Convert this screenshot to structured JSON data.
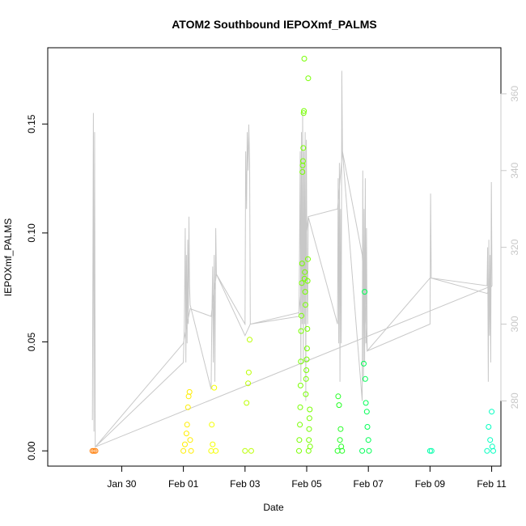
{
  "chart_data": {
    "type": "scatter",
    "title": "ATOM2 Southbound IEPOXmf_PALMS",
    "xlabel": "Date",
    "ylabel": "IEPOXmf_PALMS",
    "x_unit": "days (0 = Jan 30)",
    "xlim": [
      -2.4,
      12.3
    ],
    "ylim": [
      -0.007,
      0.185
    ],
    "y2lim": [
      263,
      372
    ],
    "x_ticks": [
      {
        "label": "Jan 30",
        "x": 0
      },
      {
        "label": "Feb 01",
        "x": 2
      },
      {
        "label": "Feb 03",
        "x": 4
      },
      {
        "label": "Feb 05",
        "x": 6
      },
      {
        "label": "Feb 07",
        "x": 8
      },
      {
        "label": "Feb 09",
        "x": 10
      },
      {
        "label": "Feb 11",
        "x": 12
      }
    ],
    "y_ticks": [
      {
        "label": "0.00",
        "y": 0.0
      },
      {
        "label": "0.05",
        "y": 0.05
      },
      {
        "label": "0.10",
        "y": 0.1
      },
      {
        "label": "0.15",
        "y": 0.15
      }
    ],
    "y2_ticks": [
      {
        "label": "280",
        "y": 280
      },
      {
        "label": "300",
        "y": 300
      },
      {
        "label": "320",
        "y": 320
      },
      {
        "label": "340",
        "y": 340
      },
      {
        "label": "360",
        "y": 360
      }
    ],
    "series": [
      {
        "name": "IEPOXmf_PALMS",
        "marker": "open-circle",
        "color_scale": [
          "#ff7a00",
          "#ffdd00",
          "#e6ff00",
          "#9dff00",
          "#66ff00",
          "#00ff44",
          "#00ffaa"
        ],
        "points": [
          {
            "x": -0.95,
            "y": 0.0,
            "c": "#ff7a00"
          },
          {
            "x": -0.9,
            "y": 0.0,
            "c": "#ff7a00"
          },
          {
            "x": -0.85,
            "y": 0.0,
            "c": "#ff7a00"
          },
          {
            "x": 2.0,
            "y": 0.0,
            "c": "#ffee00"
          },
          {
            "x": 2.05,
            "y": 0.003,
            "c": "#ffee00"
          },
          {
            "x": 2.1,
            "y": 0.008,
            "c": "#ffee00"
          },
          {
            "x": 2.12,
            "y": 0.012,
            "c": "#ffee00"
          },
          {
            "x": 2.15,
            "y": 0.02,
            "c": "#ffee00"
          },
          {
            "x": 2.17,
            "y": 0.025,
            "c": "#ffee00"
          },
          {
            "x": 2.2,
            "y": 0.027,
            "c": "#ffee00"
          },
          {
            "x": 2.22,
            "y": 0.005,
            "c": "#ffee00"
          },
          {
            "x": 2.25,
            "y": 0.0,
            "c": "#ffee00"
          },
          {
            "x": 2.9,
            "y": 0.0,
            "c": "#f5ff00"
          },
          {
            "x": 2.92,
            "y": 0.012,
            "c": "#f5ff00"
          },
          {
            "x": 2.95,
            "y": 0.003,
            "c": "#f5ff00"
          },
          {
            "x": 3.0,
            "y": 0.029,
            "c": "#f5ff00"
          },
          {
            "x": 3.05,
            "y": 0.0,
            "c": "#f5ff00"
          },
          {
            "x": 4.0,
            "y": 0.0,
            "c": "#bbff00"
          },
          {
            "x": 4.05,
            "y": 0.022,
            "c": "#bbff00"
          },
          {
            "x": 4.1,
            "y": 0.031,
            "c": "#bbff00"
          },
          {
            "x": 4.12,
            "y": 0.036,
            "c": "#bbff00"
          },
          {
            "x": 4.15,
            "y": 0.051,
            "c": "#bbff00"
          },
          {
            "x": 4.2,
            "y": 0.0,
            "c": "#bbff00"
          },
          {
            "x": 5.75,
            "y": 0.0,
            "c": "#77ff00"
          },
          {
            "x": 5.76,
            "y": 0.005,
            "c": "#77ff00"
          },
          {
            "x": 5.78,
            "y": 0.012,
            "c": "#77ff00"
          },
          {
            "x": 5.79,
            "y": 0.02,
            "c": "#77ff00"
          },
          {
            "x": 5.8,
            "y": 0.03,
            "c": "#77ff00"
          },
          {
            "x": 5.81,
            "y": 0.041,
            "c": "#77ff00"
          },
          {
            "x": 5.82,
            "y": 0.055,
            "c": "#77ff00"
          },
          {
            "x": 5.83,
            "y": 0.062,
            "c": "#77ff00"
          },
          {
            "x": 5.84,
            "y": 0.077,
            "c": "#77ff00"
          },
          {
            "x": 5.85,
            "y": 0.086,
            "c": "#77ff00"
          },
          {
            "x": 5.86,
            "y": 0.128,
            "c": "#77ff00"
          },
          {
            "x": 5.87,
            "y": 0.131,
            "c": "#77ff00"
          },
          {
            "x": 5.88,
            "y": 0.133,
            "c": "#77ff00"
          },
          {
            "x": 5.89,
            "y": 0.139,
            "c": "#77ff00"
          },
          {
            "x": 5.9,
            "y": 0.155,
            "c": "#77ff00"
          },
          {
            "x": 5.91,
            "y": 0.156,
            "c": "#77ff00"
          },
          {
            "x": 5.92,
            "y": 0.18,
            "c": "#77ff00"
          },
          {
            "x": 5.93,
            "y": 0.079,
            "c": "#77ff00"
          },
          {
            "x": 5.94,
            "y": 0.082,
            "c": "#77ff00"
          },
          {
            "x": 5.95,
            "y": 0.073,
            "c": "#77ff00"
          },
          {
            "x": 5.96,
            "y": 0.067,
            "c": "#77ff00"
          },
          {
            "x": 5.97,
            "y": 0.026,
            "c": "#77ff00"
          },
          {
            "x": 5.98,
            "y": 0.033,
            "c": "#77ff00"
          },
          {
            "x": 5.99,
            "y": 0.037,
            "c": "#77ff00"
          },
          {
            "x": 6.0,
            "y": 0.042,
            "c": "#77ff00"
          },
          {
            "x": 6.01,
            "y": 0.047,
            "c": "#77ff00"
          },
          {
            "x": 6.02,
            "y": 0.056,
            "c": "#77ff00"
          },
          {
            "x": 6.03,
            "y": 0.078,
            "c": "#77ff00"
          },
          {
            "x": 6.04,
            "y": 0.088,
            "c": "#77ff00"
          },
          {
            "x": 6.05,
            "y": 0.171,
            "c": "#77ff00"
          },
          {
            "x": 6.06,
            "y": 0.0,
            "c": "#77ff00"
          },
          {
            "x": 6.07,
            "y": 0.005,
            "c": "#77ff00"
          },
          {
            "x": 6.08,
            "y": 0.01,
            "c": "#77ff00"
          },
          {
            "x": 6.09,
            "y": 0.015,
            "c": "#77ff00"
          },
          {
            "x": 6.1,
            "y": 0.019,
            "c": "#77ff00"
          },
          {
            "x": 6.11,
            "y": 0.002,
            "c": "#77ff00"
          },
          {
            "x": 7.0,
            "y": 0.0,
            "c": "#22ff22"
          },
          {
            "x": 7.02,
            "y": 0.025,
            "c": "#22ff22"
          },
          {
            "x": 7.05,
            "y": 0.021,
            "c": "#22ff22"
          },
          {
            "x": 7.08,
            "y": 0.005,
            "c": "#22ff22"
          },
          {
            "x": 7.1,
            "y": 0.01,
            "c": "#22ff22"
          },
          {
            "x": 7.12,
            "y": 0.002,
            "c": "#22ff22"
          },
          {
            "x": 7.15,
            "y": 0.0,
            "c": "#22ff22"
          },
          {
            "x": 7.8,
            "y": 0.0,
            "c": "#00ff55"
          },
          {
            "x": 7.85,
            "y": 0.04,
            "c": "#00ff55"
          },
          {
            "x": 7.88,
            "y": 0.073,
            "c": "#00ff55"
          },
          {
            "x": 7.9,
            "y": 0.033,
            "c": "#00ff55"
          },
          {
            "x": 7.92,
            "y": 0.022,
            "c": "#00ff55"
          },
          {
            "x": 7.95,
            "y": 0.018,
            "c": "#00ff55"
          },
          {
            "x": 7.97,
            "y": 0.011,
            "c": "#00ff55"
          },
          {
            "x": 8.0,
            "y": 0.005,
            "c": "#00ff55"
          },
          {
            "x": 8.02,
            "y": 0.0,
            "c": "#00ff55"
          },
          {
            "x": 10.0,
            "y": 0.0,
            "c": "#00ffaa"
          },
          {
            "x": 10.05,
            "y": 0.0,
            "c": "#00ffaa"
          },
          {
            "x": 11.85,
            "y": 0.0,
            "c": "#00ffc0"
          },
          {
            "x": 11.9,
            "y": 0.011,
            "c": "#00ffc0"
          },
          {
            "x": 11.95,
            "y": 0.005,
            "c": "#00ffc0"
          },
          {
            "x": 12.0,
            "y": 0.018,
            "c": "#00ffc0"
          },
          {
            "x": 12.02,
            "y": 0.002,
            "c": "#00ffc0"
          },
          {
            "x": 12.05,
            "y": 0.0,
            "c": "#00ffc0"
          }
        ]
      },
      {
        "name": "secondary-axis-line",
        "axis": "right",
        "color": "#c8c8c8",
        "points": [
          [
            -0.95,
            275
          ],
          [
            -0.92,
            355
          ],
          [
            -0.9,
            272
          ],
          [
            -0.88,
            350
          ],
          [
            -0.86,
            268
          ],
          [
            2.0,
            290
          ],
          [
            2.03,
            300
          ],
          [
            2.06,
            325
          ],
          [
            2.08,
            290
          ],
          [
            2.1,
            318
          ],
          [
            2.12,
            295
          ],
          [
            2.14,
            322
          ],
          [
            2.16,
            300
          ],
          [
            2.18,
            328
          ],
          [
            2.2,
            310
          ],
          [
            2.22,
            305
          ],
          [
            2.9,
            283
          ],
          [
            2.92,
            300
          ],
          [
            2.95,
            315
          ],
          [
            2.97,
            290
          ],
          [
            3.0,
            318
          ],
          [
            3.02,
            285
          ],
          [
            3.05,
            325
          ],
          [
            3.07,
            313
          ],
          [
            4.0,
            300
          ],
          [
            4.02,
            345
          ],
          [
            4.05,
            330
          ],
          [
            4.07,
            350
          ],
          [
            4.1,
            340
          ],
          [
            4.12,
            352
          ],
          [
            4.15,
            342
          ],
          [
            4.17,
            300
          ],
          [
            5.75,
            302
          ],
          [
            5.77,
            320
          ],
          [
            5.79,
            345
          ],
          [
            5.81,
            285
          ],
          [
            5.83,
            350
          ],
          [
            5.85,
            300
          ],
          [
            5.87,
            355
          ],
          [
            5.89,
            290
          ],
          [
            5.91,
            345
          ],
          [
            5.93,
            300
          ],
          [
            5.95,
            350
          ],
          [
            5.97,
            280
          ],
          [
            5.99,
            348
          ],
          [
            6.01,
            310
          ],
          [
            6.03,
            300
          ],
          [
            6.05,
            328
          ],
          [
            7.0,
            300
          ],
          [
            7.02,
            338
          ],
          [
            7.04,
            295
          ],
          [
            7.06,
            342
          ],
          [
            7.08,
            285
          ],
          [
            7.1,
            330
          ],
          [
            7.12,
            295
          ],
          [
            7.14,
            366
          ],
          [
            7.16,
            345
          ],
          [
            7.8,
            280
          ],
          [
            7.82,
            340
          ],
          [
            7.84,
            285
          ],
          [
            7.86,
            330
          ],
          [
            7.88,
            290
          ],
          [
            7.9,
            338
          ],
          [
            7.92,
            295
          ],
          [
            7.94,
            325
          ],
          [
            7.96,
            293
          ],
          [
            10.0,
            300
          ],
          [
            10.02,
            334
          ],
          [
            10.04,
            312
          ],
          [
            11.85,
            310
          ],
          [
            11.87,
            320
          ],
          [
            11.89,
            285
          ],
          [
            11.91,
            322
          ],
          [
            11.93,
            297
          ],
          [
            11.95,
            318
          ],
          [
            11.97,
            290
          ],
          [
            11.99,
            337
          ],
          [
            12.01,
            310
          ],
          [
            -0.86,
            268
          ],
          [
            2.0,
            295
          ],
          [
            2.22,
            304
          ],
          [
            2.9,
            302
          ],
          [
            3.07,
            313
          ],
          [
            4.0,
            297
          ],
          [
            4.17,
            300
          ],
          [
            5.75,
            303
          ],
          [
            6.05,
            328
          ],
          [
            7.0,
            330
          ],
          [
            7.16,
            345
          ],
          [
            7.8,
            318
          ],
          [
            7.96,
            293
          ],
          [
            10.0,
            312
          ],
          [
            10.04,
            312
          ],
          [
            11.85,
            308
          ],
          [
            12.01,
            310
          ]
        ]
      }
    ]
  }
}
